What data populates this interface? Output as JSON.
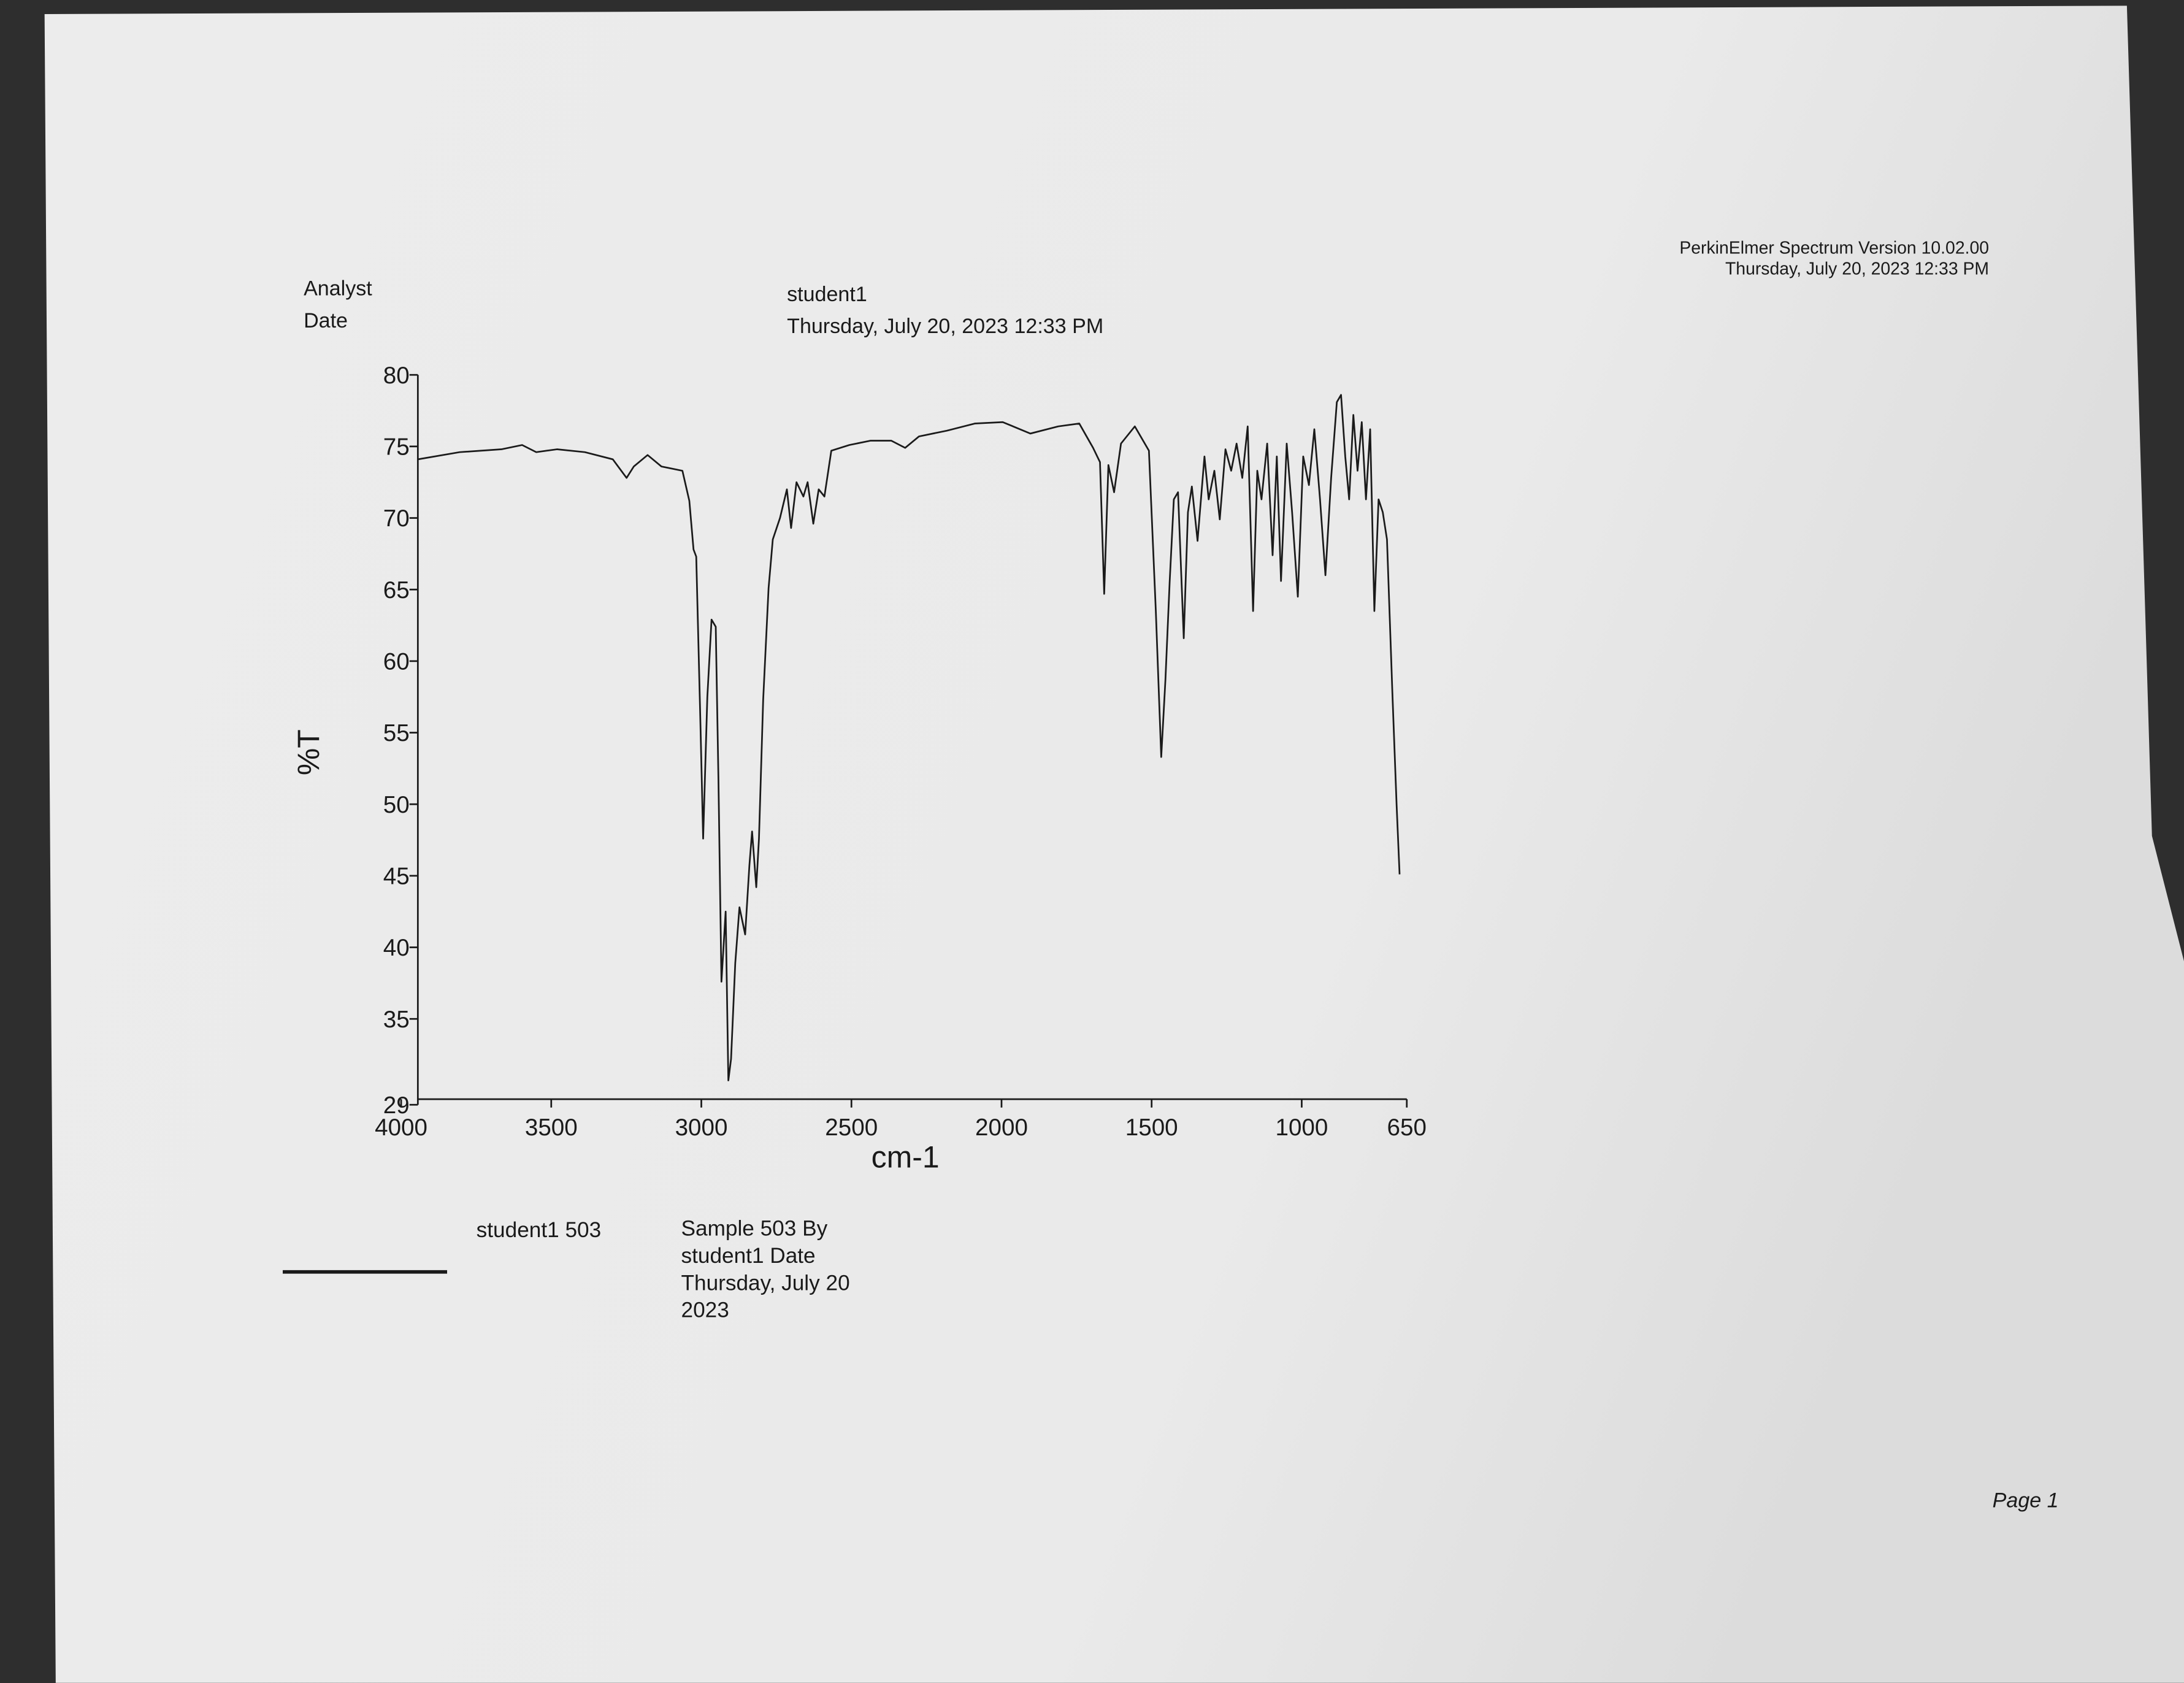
{
  "page": {
    "software": "PerkinElmer Spectrum Version 10.02.00",
    "printed": "Thursday, July 20, 2023 12:33 PM",
    "fields": [
      {
        "label": "Analyst",
        "value": "student1"
      },
      {
        "label": "Date",
        "value": "Thursday, July 20, 2023 12:33 PM"
      }
    ],
    "legend_note": [
      "Sample 503 By",
      "student1 Date",
      "Thursday, July 20",
      "2023"
    ],
    "footer": "Page 1"
  },
  "chart_data": {
    "type": "line",
    "xlabel": "cm-1",
    "ylabel": "%T",
    "xlim": [
      4000,
      650
    ],
    "ylim": [
      29,
      80
    ],
    "xticks": [
      4000,
      3500,
      3000,
      2500,
      2000,
      1500,
      1000,
      650
    ],
    "yticks": [
      29,
      35,
      40,
      45,
      50,
      55,
      60,
      65,
      70,
      75,
      80
    ],
    "x": [
      3944,
      3805,
      3666,
      3597,
      3550,
      3481,
      3388,
      3295,
      3249,
      3225,
      3179,
      3133,
      3063,
      3040,
      3026,
      3017,
      3003,
      2994,
      2980,
      2966,
      2952,
      2943,
      2933,
      2919,
      2910,
      2901,
      2887,
      2873,
      2854,
      2840,
      2831,
      2817,
      2808,
      2794,
      2776,
      2762,
      2738,
      2715,
      2701,
      2683,
      2660,
      2646,
      2627,
      2609,
      2590,
      2567,
      2507,
      2437,
      2367,
      2321,
      2275,
      2182,
      2089,
      1996,
      1904,
      1811,
      1741,
      1695,
      1672,
      1658,
      1644,
      1625,
      1602,
      1556,
      1509,
      1486,
      1468,
      1454,
      1440,
      1426,
      1412,
      1393,
      1379,
      1366,
      1347,
      1324,
      1310,
      1291,
      1273,
      1254,
      1235,
      1217,
      1198,
      1180,
      1162,
      1148,
      1134,
      1115,
      1097,
      1083,
      1069,
      1050,
      1032,
      1013,
      995,
      976,
      958,
      939,
      921,
      902,
      883,
      869,
      855,
      842,
      828,
      814,
      800,
      786,
      772,
      758,
      744,
      730,
      716,
      698,
      684,
      674
    ],
    "series": [
      {
        "name": "student1 503",
        "color": "#1a1a1a",
        "values": [
          74.1,
          74.6,
          74.8,
          75.1,
          74.6,
          74.8,
          74.6,
          74.1,
          72.8,
          73.6,
          74.4,
          73.6,
          73.3,
          71.2,
          67.8,
          67.3,
          55.6,
          47.6,
          57.5,
          62.9,
          62.4,
          51.7,
          37.6,
          42.5,
          30.7,
          32.2,
          38.9,
          42.8,
          40.9,
          45.7,
          48.1,
          44.2,
          47.6,
          57.3,
          65.1,
          68.5,
          70.0,
          72.0,
          69.3,
          72.5,
          71.5,
          72.5,
          69.6,
          72.0,
          71.5,
          74.7,
          75.1,
          75.4,
          75.4,
          74.9,
          75.7,
          76.1,
          76.6,
          76.7,
          75.9,
          76.4,
          76.6,
          74.9,
          73.9,
          64.7,
          73.7,
          71.8,
          75.2,
          76.4,
          74.7,
          63.5,
          53.3,
          58.7,
          65.5,
          71.3,
          71.8,
          61.6,
          70.4,
          72.2,
          68.4,
          74.3,
          71.3,
          73.3,
          69.9,
          74.8,
          73.3,
          75.2,
          72.8,
          76.4,
          63.5,
          73.3,
          71.3,
          75.2,
          67.4,
          74.3,
          65.6,
          75.2,
          70.4,
          64.5,
          74.3,
          72.3,
          76.2,
          71.3,
          66.0,
          72.8,
          78.1,
          78.6,
          74.3,
          71.3,
          77.2,
          73.3,
          76.7,
          71.3,
          76.2,
          63.5,
          71.3,
          70.4,
          68.5,
          57.8,
          50.0,
          45.1
        ]
      }
    ]
  }
}
